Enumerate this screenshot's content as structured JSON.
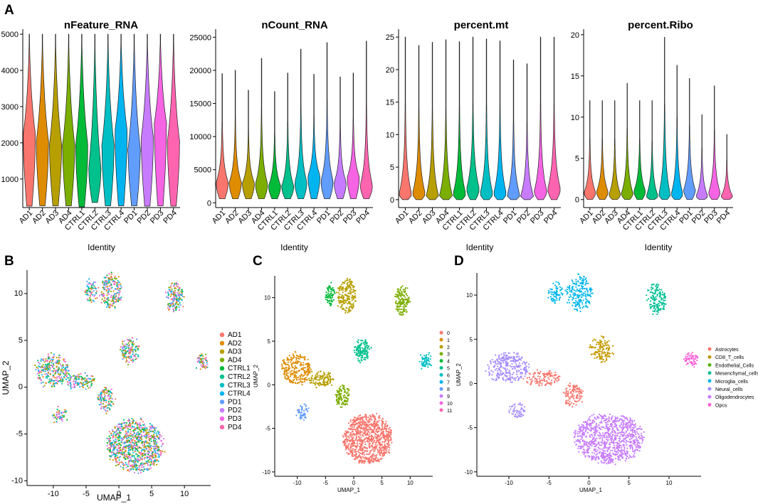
{
  "panels": {
    "a": "A",
    "b": "B",
    "c": "C",
    "d": "D"
  },
  "groups": [
    "AD1",
    "AD2",
    "AD3",
    "AD4",
    "CTRL1",
    "CTRL2",
    "CTRL3",
    "CTRL4",
    "PD1",
    "PD2",
    "PD3",
    "PD4"
  ],
  "group_colors": [
    "#f8766d",
    "#de8c00",
    "#b79f00",
    "#7cae00",
    "#00ba38",
    "#00c08b",
    "#00bfc4",
    "#00b4f0",
    "#619cff",
    "#c77cff",
    "#f564e3",
    "#ff64b0"
  ],
  "chart_data": [
    {
      "type": "violin",
      "title": "nFeature_RNA",
      "xlabel": "Identity",
      "ylabel": "",
      "ylim": [
        250,
        5100
      ],
      "yticks": [
        1000,
        2000,
        3000,
        4000,
        5000
      ],
      "categories": [
        "AD1",
        "AD2",
        "AD3",
        "AD4",
        "CTRL1",
        "CTRL2",
        "CTRL3",
        "CTRL4",
        "PD1",
        "PD2",
        "PD3",
        "PD4"
      ],
      "min": [
        250,
        260,
        260,
        260,
        230,
        350,
        260,
        260,
        260,
        250,
        260,
        250
      ],
      "max": [
        5000,
        5000,
        5000,
        5000,
        5000,
        5000,
        5000,
        5000,
        5000,
        5000,
        5000,
        5000
      ],
      "mode": [
        2200,
        2000,
        1900,
        1900,
        1900,
        1250,
        1900,
        2300,
        1800,
        2100,
        2500,
        2000
      ]
    },
    {
      "type": "violin",
      "title": "nCount_RNA",
      "xlabel": "Identity",
      "ylabel": "",
      "ylim": [
        -500,
        26000
      ],
      "yticks": [
        0,
        5000,
        10000,
        15000,
        20000,
        25000
      ],
      "categories": [
        "AD1",
        "AD2",
        "AD3",
        "AD4",
        "CTRL1",
        "CTRL2",
        "CTRL3",
        "CTRL4",
        "PD1",
        "PD2",
        "PD3",
        "PD4"
      ],
      "min": [
        600,
        600,
        600,
        600,
        600,
        600,
        600,
        600,
        600,
        600,
        600,
        600
      ],
      "max": [
        19500,
        20000,
        17000,
        21800,
        16800,
        19600,
        23200,
        19400,
        24200,
        19000,
        19600,
        24400
      ],
      "mode": [
        3000,
        3000,
        2900,
        2800,
        2500,
        2400,
        3000,
        4000,
        3200,
        3000,
        3800,
        2600
      ]
    },
    {
      "type": "violin",
      "title": "percent.mt",
      "xlabel": "Identity",
      "ylabel": "",
      "ylim": [
        -1,
        26
      ],
      "yticks": [
        0,
        5,
        10,
        15,
        20,
        25
      ],
      "categories": [
        "AD1",
        "AD2",
        "AD3",
        "AD4",
        "CTRL1",
        "CTRL2",
        "CTRL3",
        "CTRL4",
        "PD1",
        "PD2",
        "PD3",
        "PD4"
      ],
      "min": [
        0,
        0,
        0,
        0,
        0,
        0,
        0,
        0,
        0,
        0,
        0,
        0
      ],
      "max": [
        25,
        23.7,
        24.2,
        24.6,
        24.3,
        25,
        24.7,
        24.4,
        21.5,
        20.9,
        25,
        25
      ],
      "mode": [
        0.8,
        0.9,
        0.4,
        0.6,
        0.8,
        1.6,
        0.9,
        0.9,
        0.6,
        0.5,
        1.2,
        1.6
      ]
    },
    {
      "type": "violin",
      "title": "percent.Ribo",
      "xlabel": "Identity",
      "ylabel": "",
      "ylim": [
        -0.8,
        20.5
      ],
      "yticks": [
        0,
        5,
        10,
        15,
        20
      ],
      "categories": [
        "AD1",
        "AD2",
        "AD3",
        "AD4",
        "CTRL1",
        "CTRL2",
        "CTRL3",
        "CTRL4",
        "PD1",
        "PD2",
        "PD3",
        "PD4"
      ],
      "min": [
        0,
        0,
        0,
        0,
        0,
        0,
        0,
        0,
        0,
        0,
        0,
        0
      ],
      "max": [
        12,
        12,
        12,
        14.1,
        12,
        12,
        19.7,
        16.3,
        14.7,
        10.3,
        13.8,
        7.9
      ],
      "mode": [
        0.8,
        0.9,
        0.6,
        0.7,
        1,
        0.4,
        0.5,
        0.6,
        1.1,
        0.4,
        0.8,
        0.4
      ]
    },
    {
      "type": "scatter",
      "subtype": "umap",
      "xlabel": "UMAP_1",
      "ylabel": "UMAP_2",
      "xlim": [
        -14,
        14
      ],
      "ylim": [
        -10.5,
        12.5
      ],
      "xticks": [
        -10,
        -5,
        0,
        5,
        10
      ],
      "yticks": [
        -10,
        -5,
        0,
        5,
        10
      ],
      "legend": [
        "AD1",
        "AD2",
        "AD3",
        "AD4",
        "CTRL1",
        "CTRL2",
        "CTRL3",
        "CTRL4",
        "PD1",
        "PD2",
        "PD3",
        "PD4"
      ],
      "color_by": "sample"
    },
    {
      "type": "scatter",
      "subtype": "umap",
      "xlabel": "UMAP_1",
      "ylabel": "UMAP_2",
      "xlim": [
        -14,
        14
      ],
      "ylim": [
        -10.5,
        12.5
      ],
      "xticks": [
        -10,
        -5,
        0,
        5,
        10
      ],
      "yticks": [
        -10,
        -5,
        0,
        5,
        10
      ],
      "legend": [
        "0",
        "1",
        "2",
        "3",
        "4",
        "5",
        "6",
        "7",
        "8",
        "9",
        "10",
        "11"
      ],
      "color_by": "cluster"
    },
    {
      "type": "scatter",
      "subtype": "umap",
      "xlabel": "UMAP_1",
      "ylabel": "UMAP_2",
      "xlim": [
        -14,
        14
      ],
      "ylim": [
        -10.5,
        12.5
      ],
      "xticks": [
        -10,
        -5,
        0,
        5,
        10
      ],
      "yticks": [
        -10,
        -5,
        0,
        5,
        10
      ],
      "legend": [
        "Astrocytes",
        "CD8_T_cells",
        "Endothelial_Cells",
        "Mesenchymal_cells",
        "Microglia_cells",
        "Neural_cells",
        "Oligodendrocytes",
        "Opcs"
      ],
      "legend_colors": [
        "#f8766d",
        "#c49a00",
        "#53b400",
        "#00c094",
        "#00b6eb",
        "#a58aff",
        "#c77cff",
        "#fb61d7"
      ],
      "color_by": "cell_type"
    }
  ],
  "umap_clusters": [
    {
      "name": "oligodendrocytes",
      "cx": 2.5,
      "cy": -6.2,
      "rx": 4.3,
      "ry": 2.8,
      "n": 900,
      "cluster": 0,
      "type": 6
    },
    {
      "name": "neural",
      "cx": -10.2,
      "cy": 1.8,
      "rx": 2.6,
      "ry": 1.7,
      "n": 260,
      "cluster": 1,
      "type": 5
    },
    {
      "name": "astrocyte-top",
      "cx": -1.2,
      "cy": 10.2,
      "rx": 1.6,
      "ry": 1.9,
      "n": 200,
      "cluster": 2,
      "type": 4
    },
    {
      "name": "astrocyte-left",
      "cx": -4.2,
      "cy": 10.3,
      "rx": 0.9,
      "ry": 1.2,
      "n": 70,
      "cluster": 4,
      "type": 4
    },
    {
      "name": "mesenchymal",
      "cx": 1.6,
      "cy": 3.9,
      "rx": 1.4,
      "ry": 1.3,
      "n": 130,
      "cluster": 5,
      "type": 1
    },
    {
      "name": "microglia",
      "cx": 8.5,
      "cy": 9.6,
      "rx": 1.2,
      "ry": 1.6,
      "n": 150,
      "cluster": 3,
      "type": 3
    },
    {
      "name": "endothelial",
      "cx": 12.7,
      "cy": 2.7,
      "rx": 0.9,
      "ry": 0.7,
      "n": 60,
      "cluster": 6,
      "type": 7
    },
    {
      "name": "bridge",
      "cx": -5.8,
      "cy": 0.6,
      "rx": 2.2,
      "ry": 0.8,
      "n": 120,
      "cluster": 2,
      "type": 0
    },
    {
      "name": "stream",
      "cx": -2.0,
      "cy": -1.3,
      "rx": 1.2,
      "ry": 1.2,
      "n": 110,
      "cluster": 3,
      "type": 0
    },
    {
      "name": "lower-left",
      "cx": -9.0,
      "cy": -3.1,
      "rx": 1.0,
      "ry": 0.8,
      "n": 50,
      "cluster": 8,
      "type": 5
    }
  ]
}
